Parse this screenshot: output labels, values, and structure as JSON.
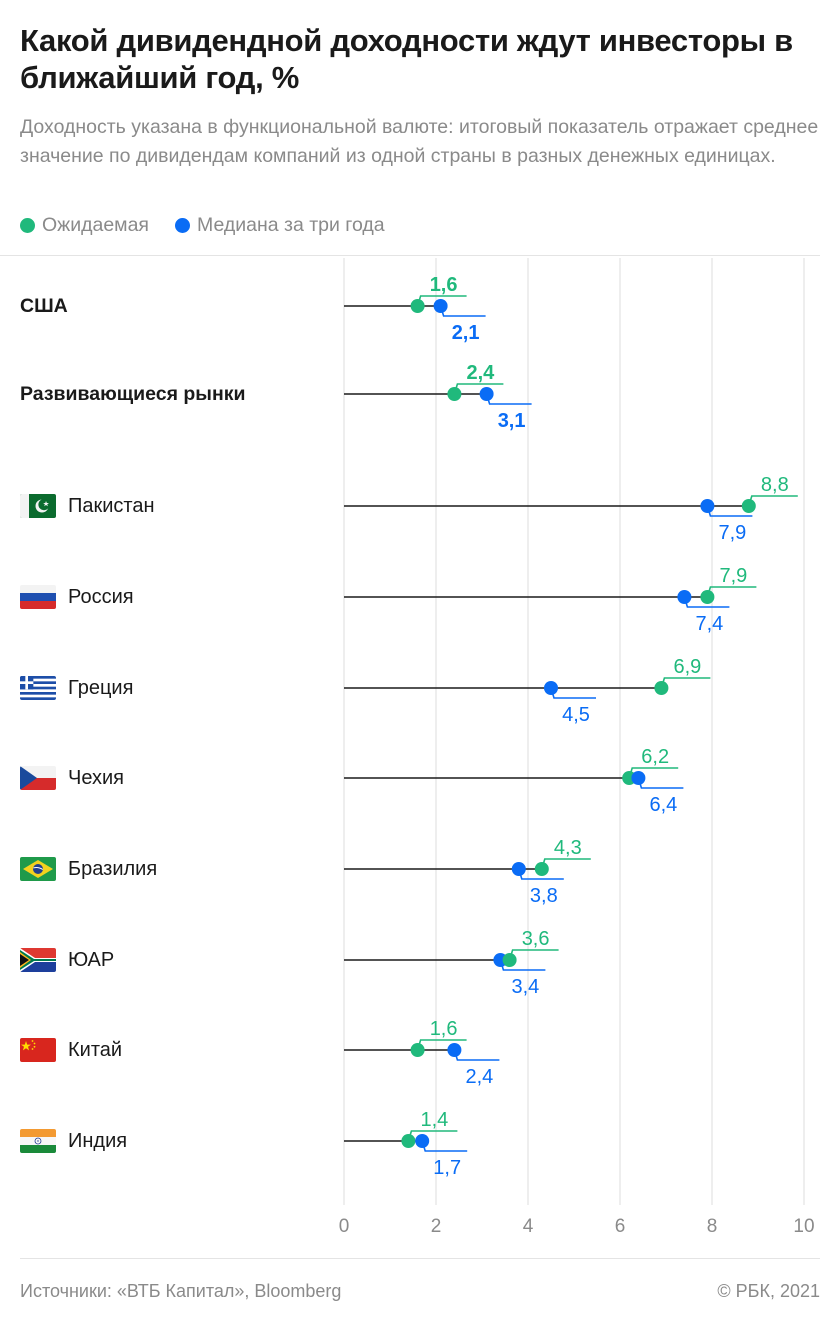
{
  "title": "Какой дивидендной доходности ждут инвесторы в ближайший год, %",
  "subtitle": "Доходность указана в функциональной валюте: итоговый показатель отражает среднее значение по дивидендам компаний из одной страны в разных денежных единицах.",
  "legend": [
    {
      "label": "Ожидаемая",
      "color": "#20b97c"
    },
    {
      "label": "Медиана за три года",
      "color": "#0a6cf5"
    }
  ],
  "footer": {
    "source": "Источники: «ВТБ Капитал», Bloomberg",
    "copyright": "© РБК, 2021"
  },
  "chart_data": {
    "type": "dumbbell",
    "title": "Какой дивидендной доходности ждут инвесторы в ближайший год, %",
    "xlabel": "",
    "ylabel": "",
    "xlim": [
      0,
      10
    ],
    "x_ticks": [
      0,
      2,
      4,
      6,
      8,
      10
    ],
    "x_tick_labels": [
      "0",
      "2",
      "4",
      "6",
      "8",
      "10"
    ],
    "grid": true,
    "legend_position": "top-left",
    "series": [
      {
        "name": "Ожидаемая",
        "color": "#20b97c",
        "key": "expected"
      },
      {
        "name": "Медиана за три года",
        "color": "#0a6cf5",
        "key": "median"
      }
    ],
    "categories": [
      {
        "label": "США",
        "bold": true,
        "flag": "",
        "expected": 1.6,
        "median": 2.1,
        "expected_label": "1,6",
        "median_label": "2,1"
      },
      {
        "label": "Развивающиеся рынки",
        "bold": true,
        "flag": "",
        "expected": 2.4,
        "median": 3.1,
        "expected_label": "2,4",
        "median_label": "3,1"
      },
      {
        "label": "Пакистан",
        "bold": false,
        "flag": "pakistan-flag",
        "expected": 8.8,
        "median": 7.9,
        "expected_label": "8,8",
        "median_label": "7,9"
      },
      {
        "label": "Россия",
        "bold": false,
        "flag": "russia-flag",
        "expected": 7.9,
        "median": 7.4,
        "expected_label": "7,9",
        "median_label": "7,4"
      },
      {
        "label": "Греция",
        "bold": false,
        "flag": "greece-flag",
        "expected": 6.9,
        "median": 4.5,
        "expected_label": "6,9",
        "median_label": "4,5"
      },
      {
        "label": "Чехия",
        "bold": false,
        "flag": "czech-flag",
        "expected": 6.2,
        "median": 6.4,
        "expected_label": "6,2",
        "median_label": "6,4"
      },
      {
        "label": "Бразилия",
        "bold": false,
        "flag": "brazil-flag",
        "expected": 4.3,
        "median": 3.8,
        "expected_label": "4,3",
        "median_label": "3,8"
      },
      {
        "label": "ЮАР",
        "bold": false,
        "flag": "south-africa-flag",
        "expected": 3.6,
        "median": 3.4,
        "expected_label": "3,6",
        "median_label": "3,4"
      },
      {
        "label": "Китай",
        "bold": false,
        "flag": "china-flag",
        "expected": 1.6,
        "median": 2.4,
        "expected_label": "1,6",
        "median_label": "2,4"
      },
      {
        "label": "Индия",
        "bold": false,
        "flag": "india-flag",
        "expected": 1.4,
        "median": 1.7,
        "expected_label": "1,4",
        "median_label": "1,7"
      }
    ]
  }
}
